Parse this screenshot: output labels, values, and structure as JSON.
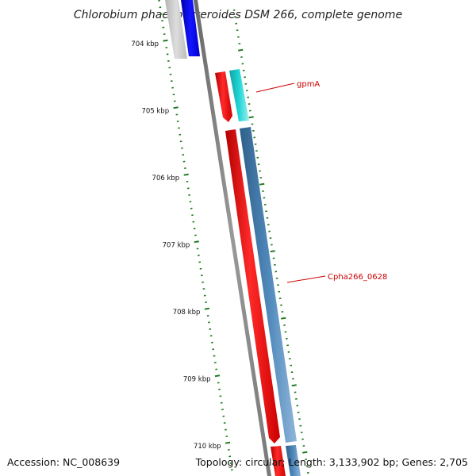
{
  "title": "Chlorobium phaeobacteroides DSM 266, complete genome",
  "footer": {
    "accession": "Accession: NC_008639",
    "topology": "Topology: circular; Length: 3,133,902 bp; Genes: 2,705"
  },
  "ticks": [
    {
      "label": "704 kbp",
      "kbp": 704
    },
    {
      "label": "705 kbp",
      "kbp": 705
    },
    {
      "label": "706 kbp",
      "kbp": 706
    },
    {
      "label": "707 kbp",
      "kbp": 707
    },
    {
      "label": "708 kbp",
      "kbp": 708
    },
    {
      "label": "709 kbp",
      "kbp": 709
    },
    {
      "label": "710 kbp",
      "kbp": 710
    }
  ],
  "gene_labels": [
    {
      "name": "gpmA"
    },
    {
      "name": "Cpha266_0628"
    }
  ],
  "colors": {
    "tick": "#1f7a1f",
    "label_red": "#cc0000",
    "red_cds": "#ff0000",
    "cyan": "#22cccc",
    "steel": "#4a82b4",
    "blue": "#0000ee",
    "backbone": "#888888"
  }
}
